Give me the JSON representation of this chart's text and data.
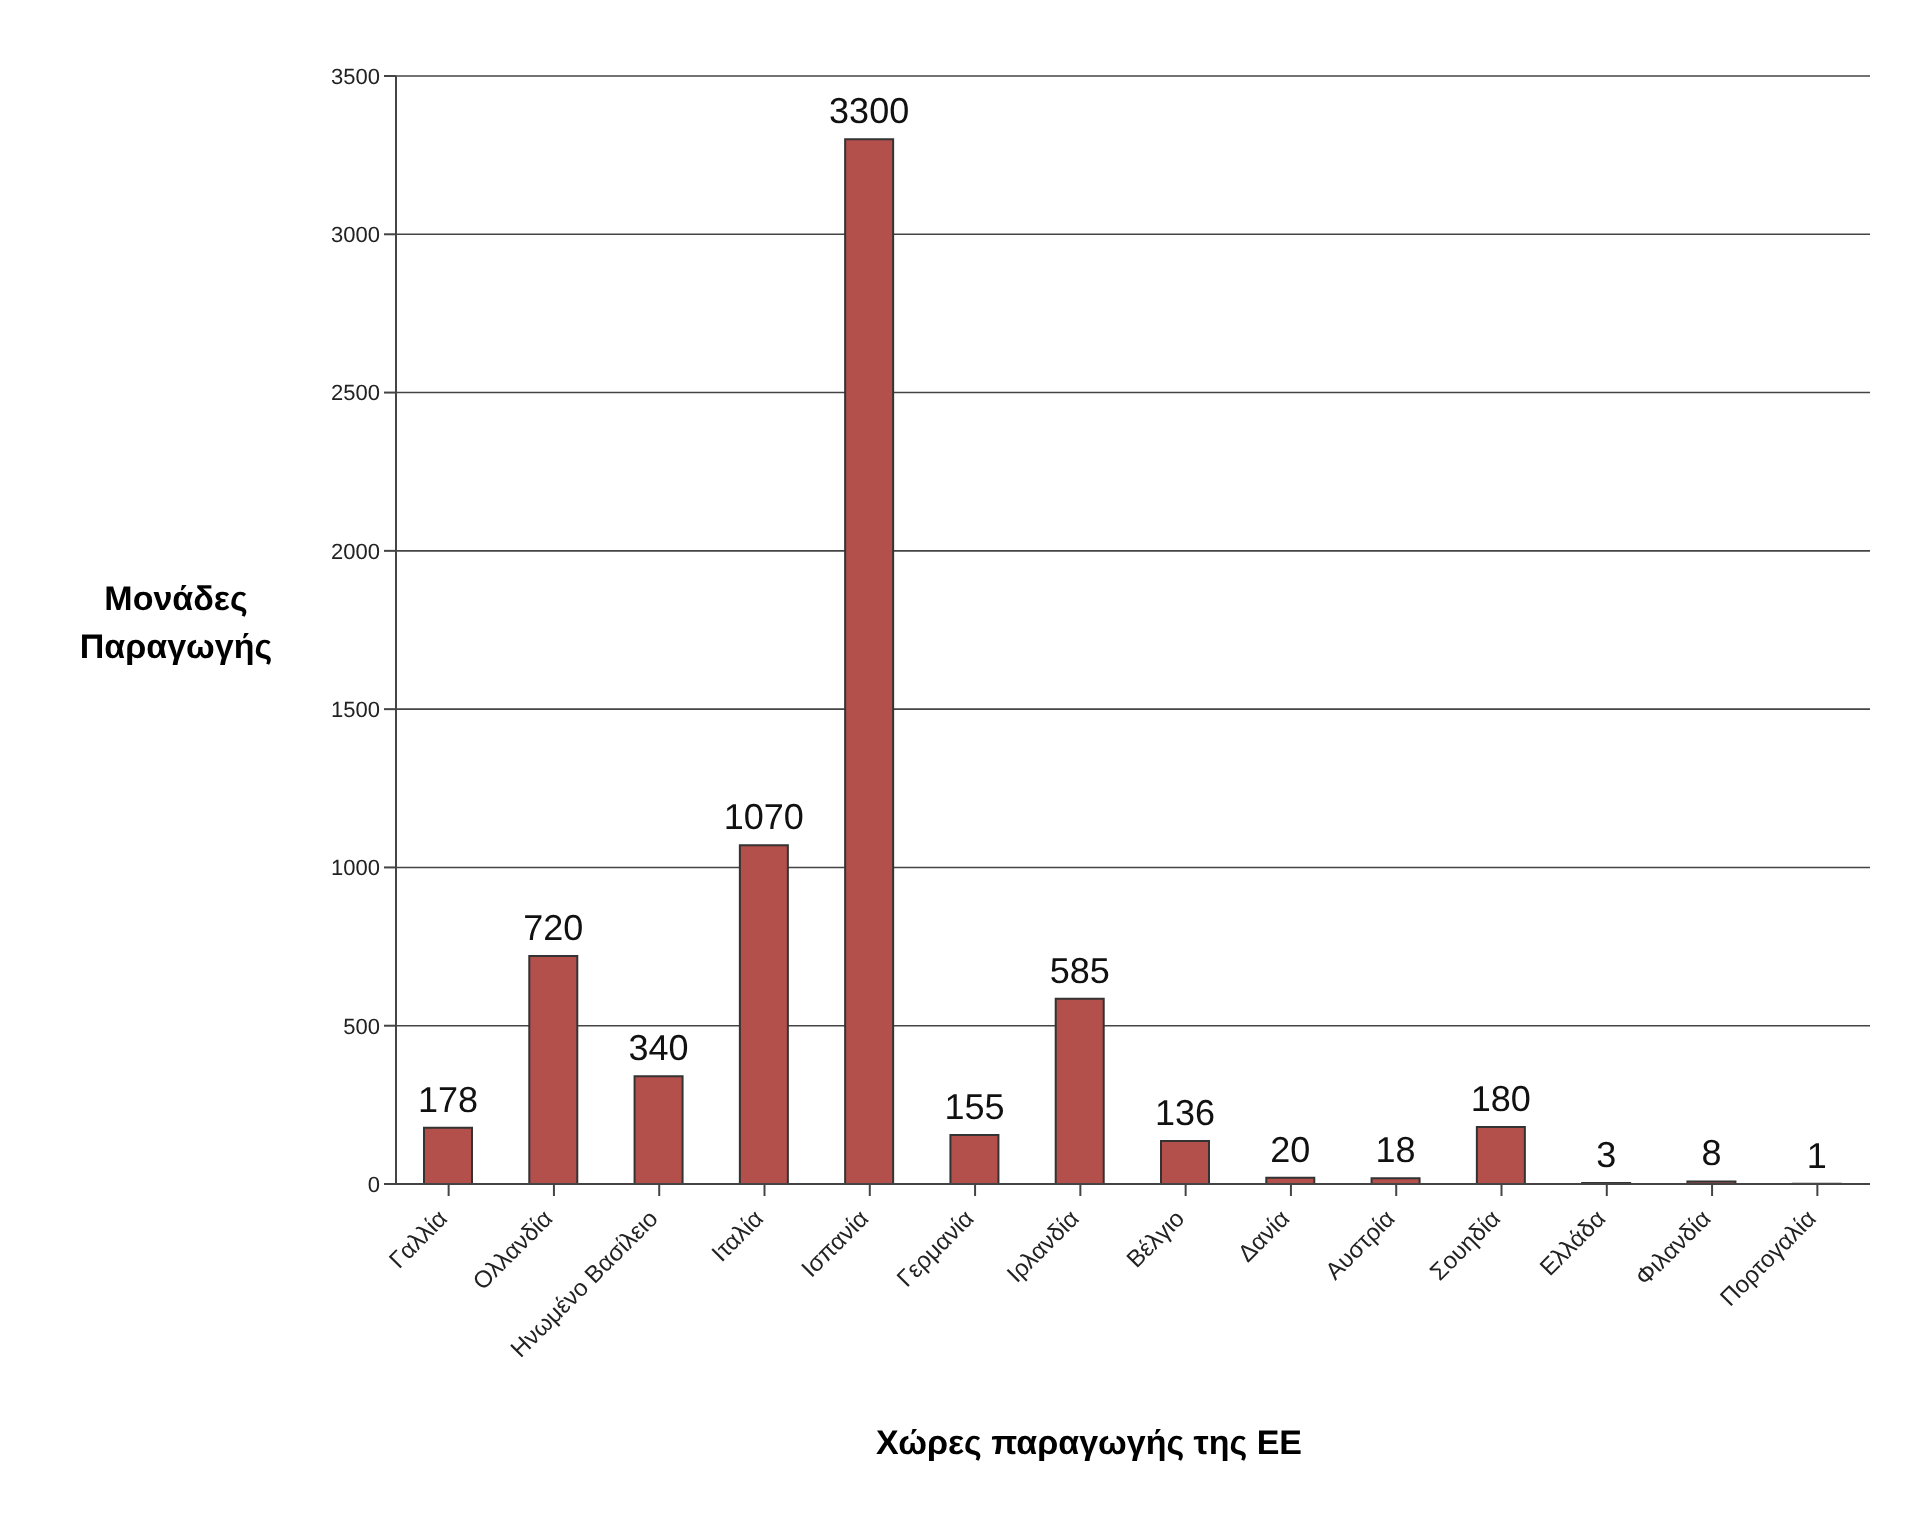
{
  "chart_data": {
    "type": "bar",
    "xlabel": "Χώρες παραγωγής της ΕΕ",
    "ylabel": "Μονάδες Παραγωγής",
    "categories": [
      "Γαλλία",
      "Ολλανδία",
      "Ηνωμένο Βασίλειο",
      "Ιταλία",
      "Ισπανία",
      "Γερμανία",
      "Ιρλανδία",
      "Βέλγιο",
      "Δανία",
      "Αυστρία",
      "Σουηδία",
      "Ελλάδα",
      "Φιλανδία",
      "Πορτογαλία"
    ],
    "values": [
      178,
      720,
      340,
      1070,
      3300,
      155,
      585,
      136,
      20,
      18,
      180,
      3,
      8,
      1
    ],
    "color": "#b4504c",
    "ylim": [
      0,
      3500
    ],
    "yticks": [
      0,
      500,
      1000,
      1500,
      2000,
      2500,
      3000,
      3500
    ],
    "grid": "y",
    "data_labels": true
  }
}
